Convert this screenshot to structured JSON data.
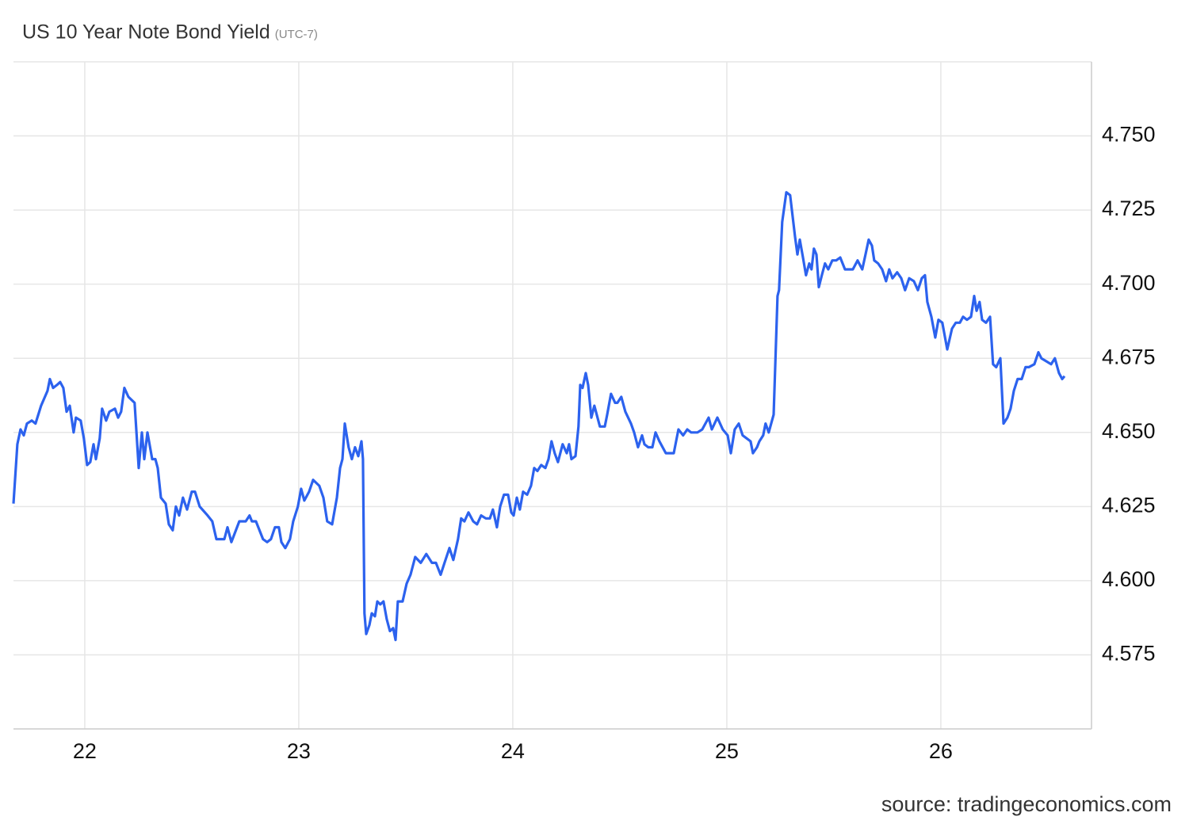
{
  "chart_data": {
    "type": "line",
    "title": "US 10 Year Note Bond Yield",
    "subtitle": "(UTC-7)",
    "source": "source: tradingeconomics.com",
    "color": "#2c62ee",
    "grid": true,
    "xlim": [
      21.667,
      26.704
    ],
    "xticks": [
      22,
      23,
      24,
      25,
      26
    ],
    "ylim": [
      4.55,
      4.775
    ],
    "yticks": [
      {
        "value": 4.575,
        "label": "4.575"
      },
      {
        "value": 4.6,
        "label": "4.600"
      },
      {
        "value": 4.625,
        "label": "4.625"
      },
      {
        "value": 4.65,
        "label": "4.650"
      },
      {
        "value": 4.675,
        "label": "4.675"
      },
      {
        "value": 4.7,
        "label": "4.700"
      },
      {
        "value": 4.725,
        "label": "4.725"
      },
      {
        "value": 4.75,
        "label": "4.750"
      }
    ],
    "x": [
      21.667,
      21.685,
      21.7,
      21.715,
      21.73,
      21.752,
      21.77,
      21.796,
      21.826,
      21.837,
      21.852,
      21.87,
      21.885,
      21.9,
      21.915,
      21.93,
      21.948,
      21.959,
      21.981,
      21.996,
      22.011,
      22.026,
      22.041,
      22.052,
      22.07,
      22.081,
      22.1,
      22.115,
      22.141,
      22.156,
      22.17,
      22.185,
      22.204,
      22.233,
      22.252,
      22.267,
      22.278,
      22.293,
      22.315,
      22.33,
      22.341,
      22.356,
      22.378,
      22.393,
      22.411,
      22.426,
      22.441,
      22.459,
      22.478,
      22.5,
      22.515,
      22.537,
      22.574,
      22.596,
      22.615,
      22.652,
      22.667,
      22.685,
      22.722,
      22.752,
      22.77,
      22.781,
      22.8,
      22.833,
      22.852,
      22.87,
      22.889,
      22.907,
      22.919,
      22.937,
      22.959,
      22.974,
      22.996,
      23.011,
      23.026,
      23.048,
      23.067,
      23.096,
      23.115,
      23.133,
      23.156,
      23.178,
      23.193,
      23.204,
      23.215,
      23.233,
      23.248,
      23.263,
      23.278,
      23.293,
      23.3,
      23.307,
      23.315,
      23.33,
      23.341,
      23.356,
      23.367,
      23.381,
      23.396,
      23.411,
      23.426,
      23.441,
      23.452,
      23.463,
      23.485,
      23.504,
      23.522,
      23.544,
      23.57,
      23.596,
      23.622,
      23.641,
      23.663,
      23.681,
      23.704,
      23.722,
      23.744,
      23.759,
      23.774,
      23.793,
      23.815,
      23.833,
      23.852,
      23.874,
      23.893,
      23.907,
      23.926,
      23.941,
      23.959,
      23.978,
      23.993,
      24.004,
      24.019,
      24.033,
      24.048,
      24.067,
      24.085,
      24.1,
      24.115,
      24.133,
      24.152,
      24.167,
      24.181,
      24.196,
      24.211,
      24.233,
      24.252,
      24.263,
      24.274,
      24.293,
      24.307,
      24.315,
      24.326,
      24.341,
      24.352,
      24.367,
      24.381,
      24.407,
      24.43,
      24.441,
      24.459,
      24.478,
      24.489,
      24.507,
      24.526,
      24.552,
      24.567,
      24.585,
      24.604,
      24.615,
      24.633,
      24.652,
      24.667,
      24.685,
      24.715,
      24.752,
      24.774,
      24.796,
      24.815,
      24.833,
      24.863,
      24.885,
      24.915,
      24.93,
      24.956,
      24.981,
      25.004,
      25.019,
      25.037,
      25.056,
      25.074,
      25.093,
      25.111,
      25.122,
      25.141,
      25.152,
      25.17,
      25.181,
      25.196,
      25.219,
      25.237,
      25.244,
      25.259,
      25.278,
      25.296,
      25.319,
      25.33,
      25.341,
      25.356,
      25.37,
      25.385,
      25.396,
      25.407,
      25.419,
      25.43,
      25.444,
      25.459,
      25.474,
      25.493,
      25.511,
      25.53,
      25.552,
      25.57,
      25.589,
      25.611,
      25.633,
      25.648,
      25.663,
      25.678,
      25.689,
      25.707,
      25.726,
      25.744,
      25.759,
      25.774,
      25.796,
      25.815,
      25.833,
      25.852,
      25.874,
      25.893,
      25.911,
      25.926,
      25.937,
      25.956,
      25.974,
      25.989,
      26.007,
      26.03,
      26.052,
      26.07,
      26.089,
      26.104,
      26.122,
      26.141,
      26.156,
      26.167,
      26.181,
      26.193,
      26.211,
      26.23,
      26.244,
      26.259,
      26.278,
      26.293,
      26.311,
      26.326,
      26.341,
      26.359,
      26.378,
      26.396,
      26.411,
      26.437,
      26.456,
      26.47,
      26.493,
      26.515,
      26.533,
      26.552,
      26.567,
      26.578
    ],
    "values": [
      4.626,
      4.646,
      4.651,
      4.649,
      4.653,
      4.654,
      4.653,
      4.659,
      4.664,
      4.668,
      4.665,
      4.666,
      4.667,
      4.665,
      4.657,
      4.659,
      4.65,
      4.655,
      4.654,
      4.648,
      4.639,
      4.64,
      4.646,
      4.641,
      4.648,
      4.658,
      4.654,
      4.657,
      4.658,
      4.655,
      4.657,
      4.665,
      4.662,
      4.66,
      4.638,
      4.65,
      4.641,
      4.65,
      4.641,
      4.641,
      4.638,
      4.628,
      4.626,
      4.619,
      4.617,
      4.625,
      4.622,
      4.628,
      4.624,
      4.63,
      4.63,
      4.625,
      4.622,
      4.62,
      4.614,
      4.614,
      4.618,
      4.613,
      4.62,
      4.62,
      4.622,
      4.62,
      4.62,
      4.614,
      4.613,
      4.614,
      4.618,
      4.618,
      4.613,
      4.611,
      4.614,
      4.62,
      4.625,
      4.631,
      4.627,
      4.63,
      4.634,
      4.632,
      4.628,
      4.62,
      4.619,
      4.628,
      4.638,
      4.641,
      4.653,
      4.645,
      4.641,
      4.645,
      4.642,
      4.647,
      4.641,
      4.589,
      4.582,
      4.585,
      4.589,
      4.588,
      4.593,
      4.592,
      4.593,
      4.587,
      4.583,
      4.584,
      4.58,
      4.593,
      4.593,
      4.599,
      4.602,
      4.608,
      4.606,
      4.609,
      4.606,
      4.606,
      4.602,
      4.606,
      4.611,
      4.607,
      4.614,
      4.621,
      4.62,
      4.623,
      4.62,
      4.619,
      4.622,
      4.621,
      4.621,
      4.624,
      4.618,
      4.625,
      4.629,
      4.629,
      4.623,
      4.622,
      4.628,
      4.624,
      4.63,
      4.629,
      4.632,
      4.638,
      4.637,
      4.639,
      4.638,
      4.641,
      4.647,
      4.643,
      4.64,
      4.646,
      4.643,
      4.646,
      4.641,
      4.642,
      4.652,
      4.666,
      4.665,
      4.67,
      4.666,
      4.655,
      4.659,
      4.652,
      4.652,
      4.656,
      4.663,
      4.66,
      4.66,
      4.662,
      4.657,
      4.653,
      4.65,
      4.645,
      4.649,
      4.646,
      4.645,
      4.645,
      4.65,
      4.647,
      4.643,
      4.643,
      4.651,
      4.649,
      4.651,
      4.65,
      4.65,
      4.651,
      4.655,
      4.651,
      4.655,
      4.651,
      4.649,
      4.643,
      4.651,
      4.653,
      4.649,
      4.648,
      4.647,
      4.643,
      4.645,
      4.647,
      4.649,
      4.653,
      4.65,
      4.656,
      4.696,
      4.698,
      4.721,
      4.731,
      4.73,
      4.716,
      4.71,
      4.715,
      4.709,
      4.703,
      4.707,
      4.705,
      4.712,
      4.71,
      4.699,
      4.703,
      4.707,
      4.705,
      4.708,
      4.708,
      4.709,
      4.705,
      4.705,
      4.705,
      4.708,
      4.705,
      4.71,
      4.715,
      4.713,
      4.708,
      4.707,
      4.705,
      4.701,
      4.705,
      4.702,
      4.704,
      4.702,
      4.698,
      4.702,
      4.701,
      4.698,
      4.702,
      4.703,
      4.694,
      4.689,
      4.682,
      4.688,
      4.687,
      4.678,
      4.685,
      4.687,
      4.687,
      4.689,
      4.688,
      4.689,
      4.696,
      4.691,
      4.694,
      4.688,
      4.687,
      4.689,
      4.673,
      4.672,
      4.675,
      4.653,
      4.655,
      4.658,
      4.664,
      4.668,
      4.668,
      4.672,
      4.672,
      4.673,
      4.677,
      4.675,
      4.674,
      4.673,
      4.675,
      4.67,
      4.668,
      4.669
    ]
  }
}
